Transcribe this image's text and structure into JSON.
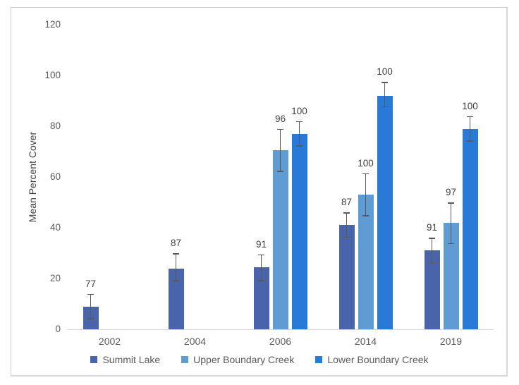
{
  "chart_data": {
    "type": "bar",
    "title": "",
    "xlabel": "",
    "ylabel": "Mean Percent Cover",
    "ylim": [
      0,
      120
    ],
    "yticks": [
      0,
      20,
      40,
      60,
      80,
      100,
      120
    ],
    "grid": false,
    "legend_position": "bottom",
    "categories": [
      "2002",
      "2004",
      "2006",
      "2014",
      "2019"
    ],
    "series": [
      {
        "name": "Summit Lake",
        "color": "#4A64AC",
        "values": [
          9,
          24,
          24.5,
          41,
          31
        ],
        "err_low": [
          4,
          19,
          19,
          36,
          26
        ],
        "err_high": [
          14,
          30,
          29.5,
          46,
          36
        ],
        "labels": [
          "77",
          "87",
          "91",
          "87",
          "91"
        ]
      },
      {
        "name": "Upper Boundary Creek",
        "color": "#609CD4",
        "values": [
          null,
          null,
          70.5,
          53,
          42
        ],
        "err_low": [
          null,
          null,
          62,
          44.5,
          33.5
        ],
        "err_high": [
          null,
          null,
          79,
          61.5,
          50
        ],
        "labels": [
          "",
          "",
          "96",
          "100",
          "97"
        ]
      },
      {
        "name": "Lower Boundary Creek",
        "color": "#2879D8",
        "values": [
          null,
          null,
          77,
          92,
          79
        ],
        "err_low": [
          null,
          null,
          72,
          87.5,
          74
        ],
        "err_high": [
          null,
          null,
          82,
          97.5,
          84
        ],
        "labels": [
          "",
          "",
          "100",
          "100",
          "100"
        ]
      }
    ],
    "error_bar_color": "#595959",
    "axis_text_color": "#595959",
    "label_text_color": "#404040",
    "baseline_color": "#d9d9d9"
  }
}
